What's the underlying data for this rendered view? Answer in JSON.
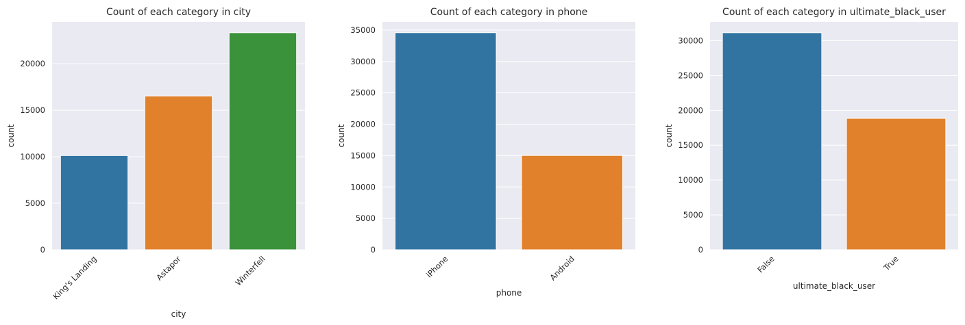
{
  "chart_data": [
    {
      "type": "bar",
      "title": "Count of each category in city",
      "xlabel": "city",
      "ylabel": "count",
      "categories": [
        "King's Landing",
        "Astapor",
        "Winterfell"
      ],
      "values": [
        10130,
        16534,
        23336
      ],
      "colors": [
        "#3274a1",
        "#e1812c",
        "#3a923a"
      ],
      "ylim": [
        0,
        24500
      ],
      "yticks": [
        0,
        5000,
        10000,
        15000,
        20000
      ],
      "yticklabels": [
        "0",
        "5000",
        "10000",
        "15000",
        "20000"
      ],
      "grid": true
    },
    {
      "type": "bar",
      "title": "Count of each category in phone",
      "xlabel": "phone",
      "ylabel": "count",
      "categories": [
        "iPhone",
        "Android"
      ],
      "values": [
        34582,
        15022
      ],
      "colors": [
        "#3274a1",
        "#e1812c"
      ],
      "ylim": [
        0,
        36300
      ],
      "yticks": [
        0,
        5000,
        10000,
        15000,
        20000,
        25000,
        30000,
        35000
      ],
      "yticklabels": [
        "0",
        "5000",
        "10000",
        "15000",
        "20000",
        "25000",
        "30000",
        "35000"
      ],
      "grid": true
    },
    {
      "type": "bar",
      "title": "Count of each category in ultimate_black_user",
      "xlabel": "ultimate_black_user",
      "ylabel": "count",
      "categories": [
        "False",
        "True"
      ],
      "values": [
        31146,
        18854
      ],
      "colors": [
        "#3274a1",
        "#e1812c"
      ],
      "ylim": [
        0,
        32700
      ],
      "yticks": [
        0,
        5000,
        10000,
        15000,
        20000,
        25000,
        30000
      ],
      "yticklabels": [
        "0",
        "5000",
        "10000",
        "15000",
        "20000",
        "25000",
        "30000"
      ],
      "grid": true
    }
  ],
  "style": {
    "plot_background": "#eaeaf2",
    "grid_color": "#ffffff",
    "text_color": "#262626"
  }
}
